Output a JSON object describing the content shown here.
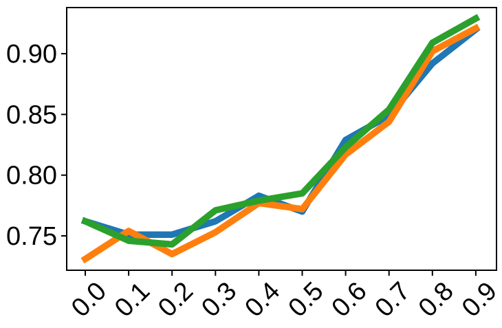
{
  "chart_data": {
    "type": "line",
    "title": "",
    "xlabel": "",
    "ylabel": "",
    "grid": false,
    "legend": null,
    "background_color": "#ffffff",
    "spine_color": "#000000",
    "tick_label_color": "#000000",
    "x_tick_rotation_deg": 45,
    "x": [
      0.0,
      0.1,
      0.2,
      0.3,
      0.4,
      0.5,
      0.6,
      0.7,
      0.8,
      0.9
    ],
    "x_tick_labels": [
      "0.0",
      "0.1",
      "0.2",
      "0.3",
      "0.4",
      "0.5",
      "0.6",
      "0.7",
      "0.8",
      "0.9"
    ],
    "y_ticks": [
      0.75,
      0.8,
      0.85,
      0.9
    ],
    "y_tick_labels": [
      "0.75",
      "0.80",
      "0.85",
      "0.90"
    ],
    "xlim": [
      -0.043,
      0.948
    ],
    "ylim": [
      0.722,
      0.938
    ],
    "series": [
      {
        "name": "blue-series",
        "color": "#1f77b4",
        "values": [
          0.762,
          0.751,
          0.751,
          0.762,
          0.783,
          0.77,
          0.829,
          0.849,
          0.892,
          0.92
        ]
      },
      {
        "name": "orange-series",
        "color": "#ff7f0e",
        "values": [
          0.731,
          0.754,
          0.735,
          0.753,
          0.777,
          0.772,
          0.817,
          0.844,
          0.902,
          0.921
        ]
      },
      {
        "name": "green-series",
        "color": "#2ca02c",
        "values": [
          0.762,
          0.746,
          0.743,
          0.771,
          0.779,
          0.785,
          0.823,
          0.854,
          0.909,
          0.929
        ]
      }
    ]
  }
}
